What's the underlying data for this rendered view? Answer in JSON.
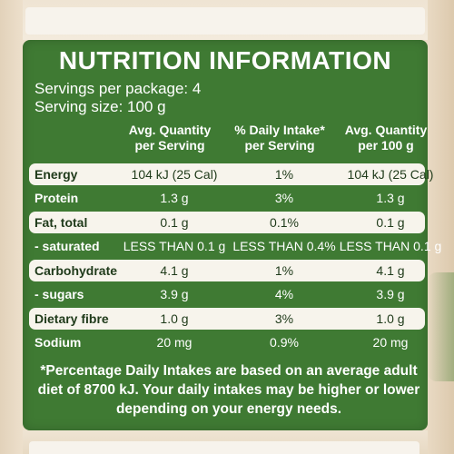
{
  "title": "NUTRITION INFORMATION",
  "servings_per_package": "Servings per package: 4",
  "serving_size": "Serving size: 100 g",
  "columns": {
    "avg_per_serving_1": "Avg. Quantity",
    "avg_per_serving_2": "per Serving",
    "daily_intake_1": "% Daily Intake*",
    "daily_intake_2": "per Serving",
    "avg_per_100g_1": "Avg. Quantity",
    "avg_per_100g_2": "per 100 g"
  },
  "rows": [
    {
      "name": "Energy",
      "per_serving": "104 kJ (25 Cal)",
      "daily": "1%",
      "per_100g": "104 kJ (25 Cal)"
    },
    {
      "name": "Protein",
      "per_serving": "1.3 g",
      "daily": "3%",
      "per_100g": "1.3 g"
    },
    {
      "name": "Fat, total",
      "per_serving": "0.1 g",
      "daily": "0.1%",
      "per_100g": "0.1 g"
    },
    {
      "name": "- saturated",
      "per_serving": "LESS THAN 0.1 g",
      "daily": "LESS THAN 0.4%",
      "per_100g": "LESS THAN 0.1 g"
    },
    {
      "name": "Carbohydrate",
      "per_serving": "4.1 g",
      "daily": "1%",
      "per_100g": "4.1 g"
    },
    {
      "name": "- sugars",
      "per_serving": "3.9 g",
      "daily": "4%",
      "per_100g": "3.9 g"
    },
    {
      "name": "Dietary fibre",
      "per_serving": "1.0 g",
      "daily": "3%",
      "per_100g": "1.0 g"
    },
    {
      "name": "Sodium",
      "per_serving": "20 mg",
      "daily": "0.9%",
      "per_100g": "20 mg"
    }
  ],
  "footnote": "*Percentage Daily Intakes are based on an average adult diet of 8700 kJ. Your daily intakes may be higher or lower depending on your energy needs.",
  "colors": {
    "label_green": "#3f7a33",
    "pill": "#f7f4ec",
    "dark_text": "#1f3a1a"
  }
}
